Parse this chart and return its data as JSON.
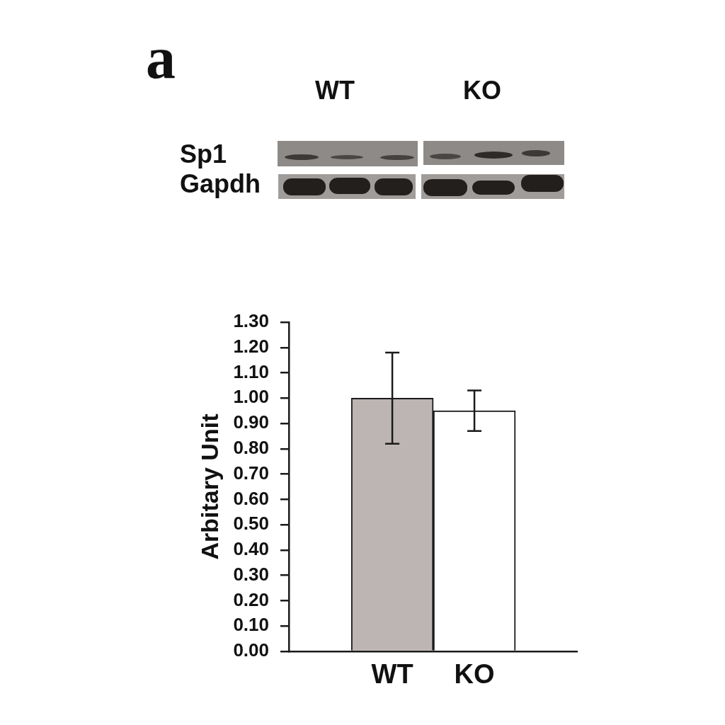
{
  "chart_data": {
    "type": "bar",
    "categories": [
      "WT",
      "KO"
    ],
    "values": [
      1.0,
      0.95
    ],
    "colors": [
      "#bdb5b3",
      "#ffffff"
    ],
    "errors": [
      [
        0.82,
        1.18
      ],
      [
        0.87,
        1.03
      ]
    ],
    "ylabel": "Arbitary Unit",
    "ylim": [
      0,
      1.3
    ],
    "yticks": [
      {
        "value": 0,
        "label": "0.00"
      },
      {
        "value": 0.1,
        "label": "0.10"
      },
      {
        "value": 0.2,
        "label": "0.20"
      },
      {
        "value": 0.3,
        "label": "0.30"
      },
      {
        "value": 0.4,
        "label": "0.40"
      },
      {
        "value": 0.5,
        "label": "0.50"
      },
      {
        "value": 0.6,
        "label": "0.60"
      },
      {
        "value": 0.7,
        "label": "0.70"
      },
      {
        "value": 0.8,
        "label": "0.80"
      },
      {
        "value": 0.9,
        "label": "0.90"
      },
      {
        "value": 1,
        "label": "1.00"
      },
      {
        "value": 1.1,
        "label": "1.10"
      },
      {
        "value": 1.2,
        "label": "1.20"
      },
      {
        "value": 1.3,
        "label": "1.30"
      }
    ],
    "annotations": [
      "a",
      "WT",
      "KO",
      "Sp1",
      "Gapdh"
    ]
  }
}
